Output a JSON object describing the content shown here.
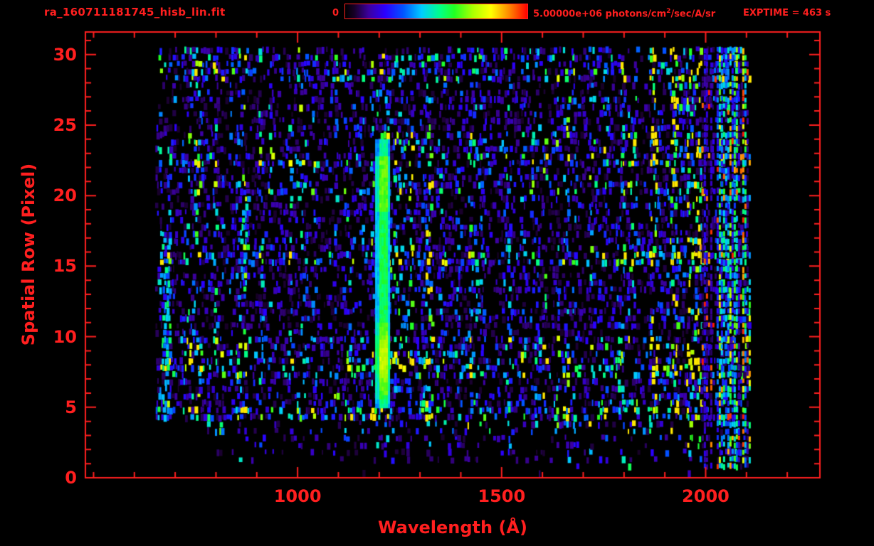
{
  "colors": {
    "background": "#000000",
    "accent": "#ff1f1f"
  },
  "header": {
    "filename": "ra_160711181745_hisb_lin.fit",
    "exptime_label": "EXPTIME = 463 s",
    "colorbar": {
      "min_label": "0",
      "max_label_prefix": "5.00000e+06 photons/cm",
      "max_label_sup": "2",
      "max_label_suffix": "/sec/A/sr"
    }
  },
  "chart_data": {
    "type": "heatmap",
    "title": "ra_160711181745_hisb_lin.fit",
    "xlabel": "Wavelength (Å)",
    "ylabel": "Spatial Row (Pixel)",
    "xlim": [
      480,
      2280
    ],
    "ylim": [
      0,
      31.6
    ],
    "x_ticks": [
      1000,
      1500,
      2000
    ],
    "x_minor_step": 100,
    "y_ticks": [
      0,
      5,
      10,
      15,
      20,
      25,
      30
    ],
    "y_minor_step": 1,
    "colorbar_range": [
      0,
      5000000
    ],
    "colorbar_units": "photons/cm^2/sec/A/sr",
    "exptime_seconds": 463,
    "data_extent": {
      "wavelength_min_A": 650,
      "wavelength_max_A": 2105,
      "row_min": 0.5,
      "row_max": 30.4
    },
    "colormap_stops": [
      {
        "t": 0.0,
        "c": "#000000"
      },
      {
        "t": 0.05,
        "c": "#170026"
      },
      {
        "t": 0.13,
        "c": "#3c00a0"
      },
      {
        "t": 0.22,
        "c": "#2a00ff"
      },
      {
        "t": 0.32,
        "c": "#0055ff"
      },
      {
        "t": 0.42,
        "c": "#00ccff"
      },
      {
        "t": 0.52,
        "c": "#00ff88"
      },
      {
        "t": 0.6,
        "c": "#22ff22"
      },
      {
        "t": 0.7,
        "c": "#aaff00"
      },
      {
        "t": 0.8,
        "c": "#ffff00"
      },
      {
        "t": 0.9,
        "c": "#ff8800"
      },
      {
        "t": 1.0,
        "c": "#ff0000"
      }
    ],
    "noise_seed": 1607,
    "features": [
      {
        "name": "emission-line",
        "mode": "line",
        "wavelength_min_A": 1190,
        "wavelength_max_A": 1224,
        "row_min": 5,
        "row_max": 24,
        "core_value_fraction": 0.58,
        "peak_value_fraction": 0.74,
        "description": "Bright green/cyan vertical emission line spanning spatial rows 5-24"
      },
      {
        "name": "detector-edge-band",
        "mode": "edge",
        "wavelength_min_A": 1985,
        "wavelength_max_A": 2108,
        "row_min": 0.5,
        "row_max": 30.4,
        "peak_value_fraction": 1.0,
        "description": "Bright multicolor noisy band at long-wavelength edge"
      },
      {
        "name": "right-noise-boost",
        "mode": "boost",
        "wavelength_min_A": 1860,
        "wavelength_max_A": 1990,
        "row_min": 0.5,
        "row_max": 30.4,
        "gain": 2.0
      },
      {
        "name": "line-halo-boost",
        "mode": "boost",
        "wavelength_min_A": 1110,
        "wavelength_max_A": 1330,
        "row_min": 4,
        "row_max": 25,
        "gain": 1.55
      },
      {
        "name": "blue-streak-left",
        "mode": "streak",
        "wavelength_min_A": 666,
        "wavelength_max_A": 686,
        "row_min": 4,
        "row_max": 17,
        "value_fraction": 0.3
      },
      {
        "name": "blue-streak-mid",
        "mode": "streak",
        "wavelength_min_A": 858,
        "wavelength_max_A": 880,
        "row_min": 13,
        "row_max": 20,
        "value_fraction": 0.24
      },
      {
        "name": "line-faint-tail",
        "mode": "streak",
        "wavelength_min_A": 1196,
        "wavelength_max_A": 1218,
        "row_min": 1,
        "row_max": 3,
        "value_fraction": 0.14
      },
      {
        "name": "background-noise",
        "mode": "background",
        "wavelength_min_A": 650,
        "wavelength_max_A": 2105,
        "row_min": 0.5,
        "row_max": 30.4,
        "typical_value_fraction": 0.12
      }
    ]
  }
}
